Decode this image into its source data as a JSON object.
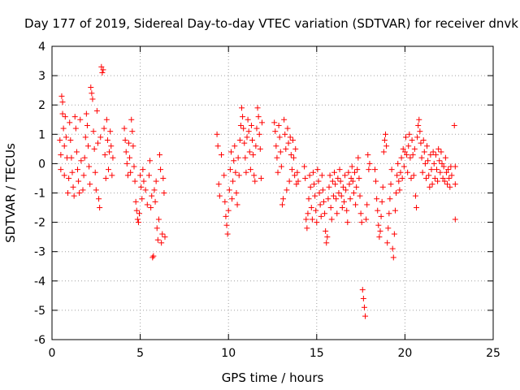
{
  "chart_data": {
    "type": "scatter",
    "title": "Day 177 of 2019, Sidereal Day-to-day VTEC variation (SDTVAR) for receiver dnvk",
    "xlabel": "GPS time / hours",
    "ylabel": "SDTVAR / TECUs",
    "xlim": [
      0,
      25
    ],
    "ylim": [
      -6,
      4
    ],
    "xticks": [
      0,
      5,
      10,
      15,
      20,
      25
    ],
    "yticks": [
      -6,
      -5,
      -4,
      -3,
      -2,
      -1,
      0,
      1,
      2,
      3,
      4
    ],
    "xtick_labels": [
      "0",
      "5",
      "10",
      "15",
      "20",
      "25"
    ],
    "ytick_labels": [
      "-6",
      "-5",
      "-4",
      "-3",
      "-2",
      "-1",
      "0",
      "1",
      "2",
      "3",
      "4"
    ],
    "grid": true,
    "marker": "+",
    "color": "#ff0000",
    "points": [
      [
        0.45,
        0.8
      ],
      [
        0.5,
        0.3
      ],
      [
        0.5,
        -0.2
      ],
      [
        0.55,
        2.3
      ],
      [
        0.6,
        2.1
      ],
      [
        0.6,
        1.7
      ],
      [
        0.65,
        1.2
      ],
      [
        0.7,
        0.6
      ],
      [
        0.7,
        -0.4
      ],
      [
        0.75,
        1.6
      ],
      [
        0.8,
        0.9
      ],
      [
        0.85,
        0.2
      ],
      [
        0.9,
        -1.0
      ],
      [
        0.95,
        -0.5
      ],
      [
        1.0,
        1.4
      ],
      [
        1.05,
        0.8
      ],
      [
        1.1,
        0.2
      ],
      [
        1.15,
        -0.3
      ],
      [
        1.2,
        -0.8
      ],
      [
        1.25,
        -1.1
      ],
      [
        1.3,
        1.6
      ],
      [
        1.35,
        1.2
      ],
      [
        1.4,
        0.4
      ],
      [
        1.45,
        -0.2
      ],
      [
        1.5,
        -0.6
      ],
      [
        1.55,
        -1.0
      ],
      [
        1.6,
        1.5
      ],
      [
        1.65,
        0.1
      ],
      [
        1.75,
        -0.9
      ],
      [
        1.8,
        -0.4
      ],
      [
        1.85,
        0.2
      ],
      [
        1.9,
        0.9
      ],
      [
        1.95,
        1.7
      ],
      [
        2.0,
        1.3
      ],
      [
        2.05,
        0.6
      ],
      [
        2.1,
        -0.1
      ],
      [
        2.15,
        -0.7
      ],
      [
        2.2,
        2.6
      ],
      [
        2.25,
        2.4
      ],
      [
        2.3,
        2.2
      ],
      [
        2.35,
        1.1
      ],
      [
        2.4,
        0.5
      ],
      [
        2.45,
        -0.3
      ],
      [
        2.5,
        -0.9
      ],
      [
        2.55,
        1.8
      ],
      [
        2.6,
        0.7
      ],
      [
        2.65,
        -1.2
      ],
      [
        2.7,
        -1.5
      ],
      [
        2.75,
        0.9
      ],
      [
        2.8,
        3.3
      ],
      [
        2.85,
        3.1
      ],
      [
        2.9,
        3.2
      ],
      [
        2.95,
        1.2
      ],
      [
        3.0,
        0.3
      ],
      [
        3.05,
        -0.5
      ],
      [
        3.1,
        1.5
      ],
      [
        3.15,
        0.8
      ],
      [
        3.2,
        -0.2
      ],
      [
        3.25,
        0.4
      ],
      [
        3.3,
        1.1
      ],
      [
        3.35,
        0.6
      ],
      [
        3.4,
        -0.4
      ],
      [
        3.45,
        0.2
      ],
      [
        4.1,
        1.2
      ],
      [
        4.15,
        0.8
      ],
      [
        4.2,
        0.4
      ],
      [
        4.25,
        0.0
      ],
      [
        4.3,
        -0.4
      ],
      [
        4.35,
        0.7
      ],
      [
        4.4,
        0.2
      ],
      [
        4.45,
        -0.3
      ],
      [
        4.5,
        1.5
      ],
      [
        4.55,
        1.1
      ],
      [
        4.6,
        0.6
      ],
      [
        4.65,
        -0.1
      ],
      [
        4.7,
        -0.6
      ],
      [
        4.75,
        -1.3
      ],
      [
        4.8,
        -1.6
      ],
      [
        4.85,
        -1.9
      ],
      [
        4.9,
        -2.0
      ],
      [
        4.95,
        -1.7
      ],
      [
        5.0,
        -0.4
      ],
      [
        5.05,
        -0.8
      ],
      [
        5.1,
        -1.2
      ],
      [
        5.15,
        -0.2
      ],
      [
        5.2,
        -0.6
      ],
      [
        5.3,
        -0.9
      ],
      [
        5.4,
        -1.4
      ],
      [
        5.5,
        -0.4
      ],
      [
        5.55,
        0.1
      ],
      [
        5.6,
        -1.5
      ],
      [
        5.65,
        -1.1
      ],
      [
        5.7,
        -3.2
      ],
      [
        5.75,
        -3.15
      ],
      [
        5.8,
        -0.9
      ],
      [
        5.85,
        -1.3
      ],
      [
        5.9,
        -0.6
      ],
      [
        5.95,
        -2.2
      ],
      [
        6.0,
        -2.6
      ],
      [
        6.05,
        -1.9
      ],
      [
        6.1,
        0.3
      ],
      [
        6.15,
        -0.2
      ],
      [
        6.2,
        -2.7
      ],
      [
        6.25,
        -2.4
      ],
      [
        6.3,
        -0.5
      ],
      [
        6.35,
        -1.0
      ],
      [
        6.4,
        -2.5
      ],
      [
        9.35,
        1.0
      ],
      [
        9.4,
        0.6
      ],
      [
        9.45,
        -0.7
      ],
      [
        9.5,
        -1.1
      ],
      [
        9.6,
        0.3
      ],
      [
        9.75,
        -0.4
      ],
      [
        9.8,
        -1.3
      ],
      [
        9.85,
        -1.8
      ],
      [
        9.9,
        -2.1
      ],
      [
        9.95,
        -2.4
      ],
      [
        10.0,
        -1.6
      ],
      [
        10.05,
        -0.9
      ],
      [
        10.1,
        -0.2
      ],
      [
        10.15,
        0.4
      ],
      [
        10.2,
        -1.2
      ],
      [
        10.25,
        -0.6
      ],
      [
        10.3,
        0.1
      ],
      [
        10.35,
        0.6
      ],
      [
        10.4,
        -0.3
      ],
      [
        10.45,
        -1.0
      ],
      [
        10.5,
        -1.4
      ],
      [
        10.55,
        0.2
      ],
      [
        10.6,
        -0.4
      ],
      [
        10.65,
        0.8
      ],
      [
        10.7,
        1.3
      ],
      [
        10.75,
        1.9
      ],
      [
        10.8,
        1.6
      ],
      [
        10.85,
        1.2
      ],
      [
        10.9,
        0.7
      ],
      [
        10.95,
        0.2
      ],
      [
        11.0,
        -0.3
      ],
      [
        11.05,
        0.9
      ],
      [
        11.1,
        1.5
      ],
      [
        11.15,
        1.1
      ],
      [
        11.2,
        0.4
      ],
      [
        11.25,
        -0.2
      ],
      [
        11.3,
        1.3
      ],
      [
        11.35,
        0.8
      ],
      [
        11.4,
        0.3
      ],
      [
        11.45,
        -0.4
      ],
      [
        11.5,
        -0.6
      ],
      [
        11.55,
        0.6
      ],
      [
        11.6,
        1.2
      ],
      [
        11.65,
        1.9
      ],
      [
        11.7,
        1.6
      ],
      [
        11.75,
        1.0
      ],
      [
        11.8,
        0.5
      ],
      [
        11.85,
        -0.5
      ],
      [
        11.9,
        1.4
      ],
      [
        12.6,
        1.4
      ],
      [
        12.65,
        1.1
      ],
      [
        12.7,
        0.6
      ],
      [
        12.75,
        0.2
      ],
      [
        12.8,
        -0.3
      ],
      [
        12.85,
        1.3
      ],
      [
        12.9,
        0.9
      ],
      [
        12.95,
        0.4
      ],
      [
        13.0,
        -0.1
      ],
      [
        13.05,
        -1.4
      ],
      [
        13.1,
        -1.2
      ],
      [
        13.15,
        1.5
      ],
      [
        13.2,
        1.0
      ],
      [
        13.25,
        0.5
      ],
      [
        13.3,
        -0.9
      ],
      [
        13.35,
        1.2
      ],
      [
        13.4,
        0.7
      ],
      [
        13.45,
        -0.6
      ],
      [
        13.5,
        0.9
      ],
      [
        13.55,
        0.3
      ],
      [
        13.6,
        -0.2
      ],
      [
        13.65,
        0.8
      ],
      [
        13.7,
        0.2
      ],
      [
        13.75,
        -0.4
      ],
      [
        13.8,
        0.5
      ],
      [
        13.85,
        -0.7
      ],
      [
        13.9,
        -0.3
      ],
      [
        13.95,
        -0.6
      ],
      [
        14.3,
        -0.1
      ],
      [
        14.35,
        -0.5
      ],
      [
        14.4,
        -1.9
      ],
      [
        14.45,
        -2.2
      ],
      [
        14.5,
        -1.7
      ],
      [
        14.55,
        -1.2
      ],
      [
        14.6,
        -0.4
      ],
      [
        14.65,
        -0.8
      ],
      [
        14.7,
        -1.5
      ],
      [
        14.75,
        -1.9
      ],
      [
        14.8,
        -0.3
      ],
      [
        14.85,
        -0.7
      ],
      [
        14.9,
        -1.1
      ],
      [
        14.95,
        -1.6
      ],
      [
        15.0,
        -2.0
      ],
      [
        15.05,
        -0.2
      ],
      [
        15.1,
        -0.6
      ],
      [
        15.15,
        -1.0
      ],
      [
        15.2,
        -1.4
      ],
      [
        15.25,
        -1.8
      ],
      [
        15.3,
        -0.4
      ],
      [
        15.35,
        -0.9
      ],
      [
        15.4,
        -1.3
      ],
      [
        15.45,
        -1.7
      ],
      [
        15.5,
        -2.3
      ],
      [
        15.55,
        -2.7
      ],
      [
        15.6,
        -2.5
      ],
      [
        15.65,
        -1.2
      ],
      [
        15.7,
        -0.8
      ],
      [
        15.75,
        -0.4
      ],
      [
        15.8,
        -1.5
      ],
      [
        15.85,
        -1.9
      ],
      [
        15.9,
        -0.6
      ],
      [
        15.95,
        -1.1
      ],
      [
        16.0,
        -0.3
      ],
      [
        16.05,
        -0.7
      ],
      [
        16.1,
        -1.2
      ],
      [
        16.15,
        -1.7
      ],
      [
        16.2,
        -0.5
      ],
      [
        16.25,
        -1.0
      ],
      [
        16.3,
        -0.2
      ],
      [
        16.35,
        -0.6
      ],
      [
        16.4,
        -1.1
      ],
      [
        16.45,
        -1.5
      ],
      [
        16.5,
        -0.8
      ],
      [
        16.55,
        -1.3
      ],
      [
        16.6,
        -0.4
      ],
      [
        16.65,
        -0.9
      ],
      [
        16.7,
        -1.6
      ],
      [
        16.75,
        -2.0
      ],
      [
        16.8,
        -0.3
      ],
      [
        16.85,
        -0.7
      ],
      [
        16.9,
        -1.2
      ],
      [
        16.95,
        -0.5
      ],
      [
        17.0,
        -0.1
      ],
      [
        17.05,
        -0.6
      ],
      [
        17.1,
        -1.0
      ],
      [
        17.15,
        -0.3
      ],
      [
        17.2,
        -1.4
      ],
      [
        17.25,
        -0.8
      ],
      [
        17.3,
        -0.2
      ],
      [
        17.35,
        0.2
      ],
      [
        17.4,
        -0.5
      ],
      [
        17.45,
        -1.1
      ],
      [
        17.5,
        -1.7
      ],
      [
        17.55,
        -2.0
      ],
      [
        17.6,
        -4.3
      ],
      [
        17.65,
        -4.6
      ],
      [
        17.7,
        -4.9
      ],
      [
        17.75,
        -5.2
      ],
      [
        17.8,
        -1.9
      ],
      [
        17.85,
        -1.4
      ],
      [
        17.9,
        0.3
      ],
      [
        17.95,
        -0.2
      ],
      [
        18.0,
        0.0
      ],
      [
        18.3,
        -0.2
      ],
      [
        18.35,
        -0.6
      ],
      [
        18.4,
        -1.2
      ],
      [
        18.45,
        -1.6
      ],
      [
        18.5,
        -2.1
      ],
      [
        18.55,
        -2.5
      ],
      [
        18.6,
        -2.3
      ],
      [
        18.65,
        -1.8
      ],
      [
        18.7,
        -1.3
      ],
      [
        18.75,
        -0.8
      ],
      [
        18.8,
        0.4
      ],
      [
        18.85,
        0.8
      ],
      [
        18.9,
        1.0
      ],
      [
        18.95,
        0.6
      ],
      [
        19.0,
        -2.7
      ],
      [
        19.05,
        -2.2
      ],
      [
        19.1,
        -1.7
      ],
      [
        19.15,
        -1.2
      ],
      [
        19.2,
        -0.7
      ],
      [
        19.25,
        -0.2
      ],
      [
        19.3,
        -2.9
      ],
      [
        19.35,
        -3.2
      ],
      [
        19.4,
        -2.4
      ],
      [
        19.45,
        -1.6
      ],
      [
        19.5,
        -1.0
      ],
      [
        19.55,
        -0.4
      ],
      [
        19.6,
        0.0
      ],
      [
        19.65,
        -0.6
      ],
      [
        19.7,
        -0.9
      ],
      [
        19.75,
        -0.3
      ],
      [
        19.8,
        0.2
      ],
      [
        19.85,
        -0.5
      ],
      [
        19.9,
        0.5
      ],
      [
        19.95,
        -0.1
      ],
      [
        20.0,
        0.4
      ],
      [
        20.05,
        0.9
      ],
      [
        20.1,
        0.3
      ],
      [
        20.15,
        -0.3
      ],
      [
        20.2,
        0.6
      ],
      [
        20.25,
        1.0
      ],
      [
        20.3,
        0.2
      ],
      [
        20.35,
        -0.5
      ],
      [
        20.4,
        0.8
      ],
      [
        20.45,
        0.3
      ],
      [
        20.5,
        -0.4
      ],
      [
        20.55,
        0.5
      ],
      [
        20.6,
        -1.1
      ],
      [
        20.65,
        -1.5
      ],
      [
        20.7,
        0.9
      ],
      [
        20.75,
        1.3
      ],
      [
        20.8,
        1.5
      ],
      [
        20.85,
        1.1
      ],
      [
        20.9,
        0.7
      ],
      [
        20.95,
        0.2
      ],
      [
        21.0,
        -0.3
      ],
      [
        21.05,
        0.8
      ],
      [
        21.1,
        0.4
      ],
      [
        21.15,
        0.0
      ],
      [
        21.2,
        -0.5
      ],
      [
        21.25,
        0.6
      ],
      [
        21.3,
        0.1
      ],
      [
        21.35,
        -0.4
      ],
      [
        21.4,
        -0.8
      ],
      [
        21.45,
        0.3
      ],
      [
        21.5,
        -0.2
      ],
      [
        21.55,
        -0.7
      ],
      [
        21.6,
        0.4
      ],
      [
        21.65,
        0.0
      ],
      [
        21.7,
        -0.5
      ],
      [
        21.75,
        0.3
      ],
      [
        21.8,
        -0.2
      ],
      [
        21.85,
        -0.6
      ],
      [
        21.9,
        0.5
      ],
      [
        21.95,
        0.1
      ],
      [
        22.0,
        -0.3
      ],
      [
        22.05,
        0.4
      ],
      [
        22.1,
        0.0
      ],
      [
        22.15,
        -0.5
      ],
      [
        22.2,
        -0.1
      ],
      [
        22.25,
        -0.6
      ],
      [
        22.3,
        0.2
      ],
      [
        22.35,
        -0.3
      ],
      [
        22.4,
        -0.7
      ],
      [
        22.45,
        -0.2
      ],
      [
        22.5,
        -0.5
      ],
      [
        22.55,
        -0.8
      ],
      [
        22.6,
        -0.1
      ],
      [
        22.65,
        -0.4
      ],
      [
        22.8,
        1.3
      ],
      [
        22.85,
        -0.1
      ],
      [
        22.85,
        -0.7
      ],
      [
        22.85,
        -1.9
      ]
    ]
  }
}
